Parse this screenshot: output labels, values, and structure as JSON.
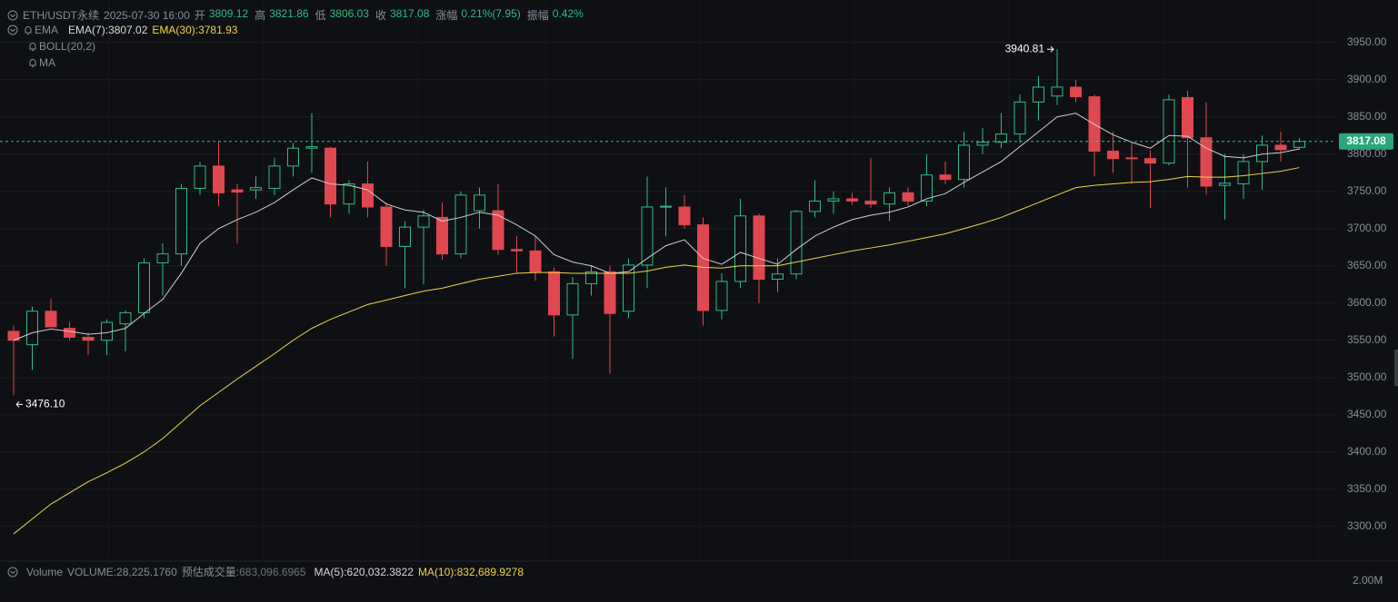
{
  "chart_data": {
    "type": "candlestick",
    "title": "ETH/USDT永续",
    "subtitle": "2025-07-30 16:00",
    "ohlc_info": [
      {
        "label": "开",
        "value": "3809.12"
      },
      {
        "label": "高",
        "value": "3821.86"
      },
      {
        "label": "低",
        "value": "3806.03"
      },
      {
        "label": "收",
        "value": "3817.08"
      },
      {
        "label": "涨幅",
        "value": "0.21%(7.95)"
      },
      {
        "label": "振幅",
        "value": "0.42%"
      }
    ],
    "indicators": [
      "EMA",
      "BOLL(20,2)",
      "MA"
    ],
    "open": [
      3562,
      3544,
      3589,
      3566,
      3554,
      3550,
      3572,
      3587,
      3654,
      3666,
      3754,
      3784,
      3752,
      3752,
      3754,
      3784,
      3808,
      3808,
      3733,
      3760,
      3729,
      3676,
      3702,
      3715,
      3666,
      3724,
      3724,
      3672,
      3670,
      3642,
      3584,
      3626,
      3642,
      3589,
      3651,
      3729,
      3729,
      3705,
      3590,
      3629,
      3717,
      3632,
      3639,
      3723,
      3737,
      3740,
      3737,
      3733,
      3748,
      3737,
      3772,
      3766,
      3812,
      3816,
      3827,
      3870,
      3878,
      3890,
      3877,
      3804,
      3795,
      3794,
      3788,
      3876,
      3822,
      3758,
      3760,
      3790,
      3812,
      3809.12
    ],
    "high": [
      3570,
      3595,
      3605,
      3575,
      3560,
      3578,
      3590,
      3660,
      3680,
      3760,
      3790,
      3818,
      3760,
      3770,
      3795,
      3815,
      3855,
      3810,
      3765,
      3790,
      3735,
      3710,
      3725,
      3735,
      3750,
      3755,
      3760,
      3690,
      3690,
      3648,
      3635,
      3650,
      3650,
      3660,
      3770,
      3755,
      3745,
      3715,
      3640,
      3740,
      3720,
      3660,
      3725,
      3765,
      3750,
      3748,
      3795,
      3755,
      3755,
      3800,
      3790,
      3830,
      3835,
      3855,
      3880,
      3905,
      3940.81,
      3900,
      3880,
      3830,
      3815,
      3805,
      3880,
      3885,
      3870,
      3800,
      3800,
      3825,
      3830,
      3821.86
    ],
    "low": [
      3476.1,
      3510,
      3570,
      3550,
      3530,
      3530,
      3535,
      3580,
      3610,
      3650,
      3745,
      3730,
      3680,
      3740,
      3745,
      3770,
      3775,
      3715,
      3720,
      3715,
      3650,
      3620,
      3625,
      3658,
      3660,
      3700,
      3665,
      3640,
      3630,
      3555,
      3525,
      3610,
      3505,
      3580,
      3620,
      3690,
      3700,
      3570,
      3578,
      3620,
      3600,
      3615,
      3632,
      3715,
      3720,
      3732,
      3728,
      3710,
      3730,
      3730,
      3760,
      3755,
      3800,
      3808,
      3815,
      3845,
      3866,
      3870,
      3770,
      3775,
      3760,
      3728,
      3785,
      3755,
      3745,
      3712,
      3740,
      3752,
      3790,
      3806.03
    ],
    "close": [
      3550,
      3589,
      3568,
      3554,
      3550,
      3574,
      3587,
      3654,
      3666,
      3754,
      3784,
      3748,
      3749,
      3755,
      3784,
      3808,
      3810,
      3733,
      3760,
      3729,
      3676,
      3702,
      3717,
      3666,
      3745,
      3745,
      3672,
      3670,
      3642,
      3584,
      3626,
      3642,
      3586,
      3651,
      3729,
      3730,
      3705,
      3590,
      3629,
      3717,
      3632,
      3639,
      3723,
      3737,
      3740,
      3737,
      3733,
      3748,
      3737,
      3772,
      3766,
      3812,
      3816,
      3827,
      3870,
      3890,
      3890,
      3877,
      3804,
      3794,
      3794,
      3788,
      3873,
      3822,
      3757,
      3761,
      3790,
      3812,
      3806,
      3817.08
    ],
    "up_color": "#2ebd85",
    "down_color": "#e0474f",
    "lines": [
      {
        "label": "EMA(7):3807.02",
        "color": "#cfcfcf",
        "values": [
          3550,
          3560,
          3565,
          3562,
          3558,
          3560,
          3566,
          3586,
          3605,
          3640,
          3680,
          3700,
          3712,
          3722,
          3735,
          3752,
          3768,
          3760,
          3758,
          3752,
          3733,
          3725,
          3722,
          3710,
          3715,
          3722,
          3718,
          3705,
          3690,
          3665,
          3655,
          3650,
          3640,
          3642,
          3660,
          3677,
          3685,
          3660,
          3652,
          3668,
          3660,
          3652,
          3672,
          3690,
          3702,
          3712,
          3718,
          3722,
          3729,
          3740,
          3747,
          3762,
          3776,
          3790,
          3810,
          3830,
          3850,
          3855,
          3840,
          3826,
          3816,
          3808,
          3825,
          3824,
          3808,
          3797,
          3795,
          3800,
          3802,
          3807.02
        ]
      },
      {
        "label": "EMA(30):3781.93",
        "color": "#f0d54a",
        "values": [
          3290,
          3310,
          3330,
          3345,
          3360,
          3372,
          3385,
          3400,
          3418,
          3440,
          3462,
          3480,
          3498,
          3515,
          3532,
          3550,
          3566,
          3578,
          3588,
          3598,
          3604,
          3610,
          3616,
          3620,
          3626,
          3632,
          3636,
          3640,
          3641,
          3641,
          3640,
          3640,
          3640,
          3640,
          3643,
          3648,
          3651,
          3648,
          3647,
          3650,
          3650,
          3650,
          3655,
          3660,
          3665,
          3670,
          3674,
          3678,
          3683,
          3688,
          3693,
          3700,
          3707,
          3715,
          3725,
          3735,
          3745,
          3755,
          3758,
          3760,
          3762,
          3763,
          3766,
          3770,
          3769,
          3769,
          3771,
          3774,
          3777,
          3781.93
        ]
      }
    ],
    "annotations": [
      {
        "index": 56,
        "text": "3940.81",
        "side": "left"
      },
      {
        "index": 0,
        "text": "3476.10",
        "side": "right"
      }
    ],
    "last_price_label": "3817.08",
    "ylim": [
      3257,
      4007
    ],
    "yticks": [
      {
        "value": 3300,
        "label": "3300.00"
      },
      {
        "value": 3350,
        "label": "3350.00"
      },
      {
        "value": 3400,
        "label": "3400.00"
      },
      {
        "value": 3450,
        "label": "3450.00"
      },
      {
        "value": 3500,
        "label": "3500.00"
      },
      {
        "value": 3550,
        "label": "3550.00"
      },
      {
        "value": 3600,
        "label": "3600.00"
      },
      {
        "value": 3650,
        "label": "3650.00"
      },
      {
        "value": 3700,
        "label": "3700.00"
      },
      {
        "value": 3750,
        "label": "3750.00"
      },
      {
        "value": 3800,
        "label": "3800.00"
      },
      {
        "value": 3850,
        "label": "3850.00"
      },
      {
        "value": 3900,
        "label": "3900.00"
      },
      {
        "value": 3950,
        "label": "3950.00"
      }
    ],
    "grid": true,
    "volume_panel": {
      "title": "Volume",
      "volume": "VOLUME:28,225.1760",
      "estimate_label": "预估成交量:",
      "estimate_value": "683,096.6965",
      "ma5": "MA(5):620,032.3822",
      "ma10": "MA(10):832,689.9278",
      "axis_label": "2.00M"
    }
  }
}
